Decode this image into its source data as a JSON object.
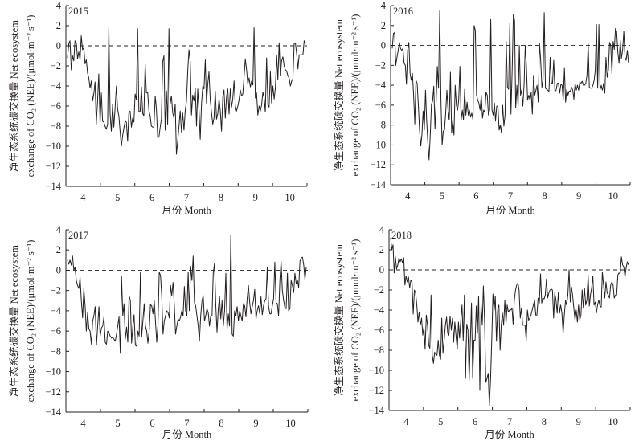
{
  "figure": {
    "note": "Four panels of daily NEE, April to October, 2015–2018"
  },
  "chart_data": [
    {
      "type": "line",
      "panel_label": "2015",
      "title": "",
      "xlabel": "月份 Month",
      "ylabel_line1": "净生态系统碳交换量 Net ecosystem",
      "ylabel_line2": "exchange of CO₂ (NEE)/(μmol·m⁻² s⁻¹)",
      "x_tick_labels": [
        "4",
        "5",
        "6",
        "7",
        "8",
        "9",
        "10"
      ],
      "y_ticks": [
        4,
        2,
        0,
        -2,
        -4,
        -6,
        -8,
        -10,
        -12,
        -14
      ],
      "ylim": [
        -14,
        4
      ],
      "xlim_months": [
        4,
        10
      ],
      "reference_line": {
        "y": 0,
        "style": "dashed"
      },
      "series": [
        {
          "name": "NEE 2015",
          "values": [
            -1.2,
            0.2,
            0.5,
            -2.4,
            -1.0,
            -1.5,
            0.5,
            0.3,
            -1.3,
            -0.6,
            -1.4,
            1.0,
            -0.4,
            -0.2,
            -1.8,
            -1.4,
            -2.7,
            -3.2,
            -4.2,
            -3.5,
            -5.5,
            -4.8,
            -3.6,
            -7.8,
            -5.5,
            -2.8,
            -7.8,
            -4.7,
            -7.5,
            -7.6,
            -8.0,
            -8.3,
            -7.8,
            1.9,
            -6.8,
            -8.5,
            -5.8,
            -8.1,
            -6.2,
            -4.0,
            -6.3,
            -7.0,
            -8.5,
            -10.0,
            -9.0,
            -8.2,
            -7.5,
            -7.6,
            -9.5,
            -6.7,
            -6.5,
            -8.1,
            -7.2,
            -7.6,
            -4.8,
            -5.4,
            1.7,
            -6.6,
            -6.5,
            -4.1,
            -6.7,
            -7.0,
            -1.8,
            -4.7,
            -4.6,
            -6.5,
            -7.0,
            -8.0,
            -8.1,
            -8.1,
            -5.0,
            -6.3,
            -9.1,
            -9.1,
            -8.1,
            -7.3,
            -1.6,
            -1.0,
            -8.4,
            -4.5,
            -7.8,
            1.7,
            -5.8,
            -5.0,
            -6.7,
            -7.2,
            -5.8,
            -10.8,
            -9.5,
            -8.0,
            -6.5,
            -8.6,
            -6.7,
            -8.4,
            -6.5,
            -5.5,
            -2.5,
            -0.4,
            -1.6,
            -6.9,
            -4.9,
            -5.5,
            -4.2,
            -8.0,
            -4.3,
            -6.4,
            -9.3,
            -5.8,
            -4.0,
            -4.3,
            -1.4,
            -5.7,
            -3.8,
            -2.6,
            -5.4,
            -6.7,
            -7.8,
            -7.2,
            -4.5,
            -7.3,
            -6.8,
            -5.3,
            -6.5,
            -8.5,
            -5.1,
            -4.4,
            -7.2,
            -5.0,
            -4.3,
            -6.8,
            -4.3,
            -6.1,
            -5.3,
            -3.5,
            -6.0,
            -6.5,
            -6.0,
            -5.4,
            -4.4,
            -5.0,
            -4.8,
            -3.0,
            -1.3,
            -2.4,
            -3.8,
            -3.2,
            -4.1,
            -3.5,
            -3.9,
            1.8,
            -5.2,
            -4.7,
            -6.9,
            -6.0,
            -6.5,
            -5.9,
            -4.6,
            -5.2,
            -6.6,
            -1.2,
            -5.9,
            -6.1,
            -2.6,
            -5.7,
            -4.0,
            -5.3,
            -4.2,
            -1.0,
            -3.4,
            0.3,
            -3.0,
            -1.5,
            -1.1,
            -2.0,
            -2.4,
            -2.5,
            -3.0,
            -3.2,
            -4.0,
            -3.5,
            -3.3,
            0.2,
            0.3,
            -0.8,
            -2.3,
            -0.9,
            -0.9,
            -0.9,
            -0.9,
            0.5,
            0.2
          ]
        }
      ]
    },
    {
      "type": "line",
      "panel_label": "2016",
      "title": "",
      "xlabel": "月份 Month",
      "ylabel_line1": "净生态系统碳交换量 Net ecosystem",
      "ylabel_line2": "exchange of CO₂ (NEE)/(μmol·m⁻² s⁻¹)",
      "x_tick_labels": [
        "4",
        "5",
        "6",
        "7",
        "8",
        "9",
        "10"
      ],
      "y_ticks": [
        4,
        2,
        0,
        -2,
        -4,
        -6,
        -8,
        -10,
        -12,
        -14
      ],
      "ylim": [
        -14,
        4
      ],
      "xlim_months": [
        4,
        10
      ],
      "reference_line": {
        "y": 0,
        "style": "dashed"
      },
      "series": [
        {
          "name": "NEE 2016",
          "values": [
            -0.3,
            1.2,
            1.3,
            -2.0,
            -1.2,
            -0.5,
            0.3,
            -0.3,
            -0.5,
            -0.3,
            -1.8,
            -2.0,
            -3.9,
            -0.5,
            0.3,
            -2.8,
            -3.5,
            -2.8,
            -5.0,
            -7.9,
            -3.5,
            -3.8,
            -6.0,
            -8.5,
            -10.1,
            -9.0,
            -6.6,
            -8.5,
            -4.5,
            -7.5,
            -9.7,
            -11.5,
            -9.0,
            -5.9,
            -5.6,
            -4.1,
            -8.4,
            -5.5,
            -2.1,
            -4.3,
            3.5,
            -5.5,
            -10.0,
            -8.6,
            -8.5,
            -6.8,
            -4.5,
            -6.5,
            -7.5,
            -2.7,
            -8.8,
            -7.6,
            -9.0,
            -4.0,
            -6.0,
            -6.5,
            -5.5,
            -2.1,
            -7.5,
            -6.5,
            -7.5,
            -4.4,
            -7.0,
            -5.7,
            -7.0,
            -6.5,
            -7.2,
            -6.8,
            -7.5,
            2.0,
            1.5,
            -5.0,
            -5.5,
            -5.8,
            -6.5,
            -5.0,
            -7.3,
            -6.5,
            -6.7,
            -4.7,
            -5.0,
            -7.0,
            -6.5,
            2.6,
            -6.5,
            -7.0,
            -5.8,
            -7.6,
            -6.1,
            -6.1,
            -8.5,
            -8.0,
            -8.8,
            -6.0,
            -8.1,
            -7.0,
            0.4,
            -4.2,
            -4.4,
            2.2,
            -6.9,
            -2.5,
            3.1,
            2.5,
            -6.3,
            -4.0,
            -6.1,
            0.0,
            -5.0,
            -4.5,
            -6.1,
            -4.0,
            0.0,
            -2.0,
            -5.5,
            -5.0,
            -5.5,
            -4.7,
            -6.9,
            -3.0,
            -5.0,
            -4.5,
            -4.0,
            -5.7,
            0.2,
            -1.5,
            -4.2,
            -3.5,
            3.3,
            -4.3,
            -4.4,
            -4.5,
            -4.6,
            -1.2,
            -3.8,
            -3.8,
            -1.5,
            -4.6,
            -4.5,
            -3.8,
            -3.8,
            -4.8,
            -3.9,
            -4.0,
            -5.5,
            -2.3,
            -5.7,
            -4.4,
            -5.0,
            -4.6,
            -4.6,
            -4.2,
            -4.5,
            -5.4,
            -3.8,
            -4.5,
            -4.0,
            -4.5,
            -3.7,
            -3.8,
            -3.6,
            -4.0,
            -4.0,
            -3.8,
            -3.0,
            0.2,
            -4.2,
            -4.3,
            -4.3,
            -4.0,
            -3.5,
            -2.5,
            2.1,
            -4.3,
            2.1,
            -4.5,
            -4.0,
            -4.5,
            -3.8,
            -4.8,
            -1.2,
            -3.2,
            -2.5,
            0.3,
            0.0,
            -2.8,
            0.4,
            -0.4,
            1.7,
            1.4,
            -0.7,
            -1.8,
            0.5,
            -1.3,
            -0.5,
            1.4,
            -1.2,
            -1.5,
            -0.5,
            -1.8
          ]
        }
      ]
    },
    {
      "type": "line",
      "panel_label": "2017",
      "title": "",
      "xlabel": "月份 Month",
      "ylabel_line1": "净生态系统碳交换量 Net ecosystem",
      "ylabel_line2": "exchange of CO₂ (NEE)/(μmol·m⁻² s⁻¹)",
      "x_tick_labels": [
        "4",
        "5",
        "6",
        "7",
        "8",
        "9",
        "10"
      ],
      "y_ticks": [
        4,
        2,
        0,
        -2,
        -4,
        -6,
        -8,
        -10,
        -12,
        -14
      ],
      "ylim": [
        -14,
        4
      ],
      "xlim_months": [
        4,
        10
      ],
      "reference_line": {
        "y": 0,
        "style": "dashed"
      },
      "series": [
        {
          "name": "NEE 2017",
          "values": [
            1.0,
            0.6,
            1.0,
            0.5,
            1.4,
            0.0,
            0.3,
            -1.0,
            -1.5,
            -1.8,
            -0.7,
            -3.0,
            -4.7,
            -1.8,
            -3.5,
            -6.0,
            -4.2,
            -5.8,
            -6.0,
            -7.3,
            -5.0,
            -4.5,
            -3.6,
            -7.4,
            -5.5,
            -3.6,
            -6.5,
            -5.7,
            -5.5,
            -4.6,
            -7.1,
            -7.3,
            -6.0,
            -6.2,
            -6.5,
            -6.7,
            -6.6,
            -6.8,
            -7.0,
            -6.3,
            -5.5,
            -4.6,
            -8.2,
            -0.6,
            -4.5,
            -3.3,
            -6.8,
            -5.6,
            -7.1,
            -2.5,
            -3.0,
            -7.2,
            -5.5,
            -4.4,
            -7.4,
            -7.5,
            -6.0,
            -6.5,
            -0.2,
            -6.6,
            -5.0,
            -3.3,
            -5.5,
            -6.0,
            -7.2,
            -6.0,
            -3.4,
            -3.5,
            -4.3,
            -3.0,
            -5.0,
            -7.1,
            -5.5,
            -0.2,
            -0.5,
            -2.5,
            -6.3,
            -5.0,
            -4.5,
            -4.0,
            -4.2,
            -4.7,
            -1.5,
            -2.5,
            -1.2,
            -3.5,
            -6.3,
            -5.5,
            -4.8,
            -5.0,
            -4.6,
            -4.0,
            -4.5,
            -1.6,
            -4.0,
            -4.5,
            -0.2,
            -4.0,
            0.4,
            -1.0,
            1.4,
            -3.2,
            -3.5,
            -4.5,
            -5.5,
            -7.0,
            -4.5,
            -3.0,
            -2.5,
            -5.0,
            -4.5,
            -3.8,
            -4.2,
            -5.5,
            -4.5,
            -4.5,
            -0.3,
            0.7,
            -3.5,
            -6.1,
            -3.8,
            -2.6,
            -4.8,
            -3.0,
            -5.5,
            -4.0,
            -0.3,
            -5.8,
            -4.3,
            -5.5,
            3.5,
            -6.3,
            -6.5,
            -4.0,
            -4.5,
            -3.6,
            -5.0,
            -4.0,
            -4.5,
            -5.0,
            -3.3,
            -3.5,
            -4.6,
            -2.8,
            -1.5,
            -3.2,
            -4.3,
            -3.6,
            -3.0,
            -1.9,
            -4.8,
            -4.0,
            -3.5,
            -4.3,
            -2.6,
            -4.4,
            -3.5,
            -3.0,
            -2.8,
            0.3,
            -3.5,
            -4.3,
            -4.3,
            -3.5,
            -2.8,
            0.8,
            -3.2,
            -3.3,
            -4.5,
            -1.0,
            0.9,
            -2.0,
            -3.0,
            -3.7,
            -3.8,
            -0.3,
            -4.0,
            -3.8,
            -1.0,
            -1.5,
            -2.2,
            -0.3,
            -1.3,
            -1.0,
            -1.7,
            0.9,
            1.2,
            1.3,
            0.5,
            -0.9,
            0.3
          ]
        }
      ]
    },
    {
      "type": "line",
      "panel_label": "2018",
      "title": "",
      "xlabel": "月份 Month",
      "ylabel_line1": "净生态系统碳交换量 Net ecosystem",
      "ylabel_line2": "exchange of CO₂ (NEE)/(μmol·m⁻² s⁻¹)",
      "x_tick_labels": [
        "4",
        "5",
        "6",
        "7",
        "8",
        "9",
        "10"
      ],
      "y_ticks": [
        4,
        2,
        0,
        -2,
        -4,
        -6,
        -8,
        -10,
        -12,
        -14
      ],
      "ylim": [
        -14,
        4
      ],
      "xlim_months": [
        4,
        10
      ],
      "reference_line": {
        "y": 0,
        "style": "dashed"
      },
      "series": [
        {
          "name": "NEE 2018",
          "values": [
            3.2,
            2.0,
            2.5,
            -0.3,
            1.3,
            0.1,
            0.5,
            1.2,
            0.8,
            1.1,
            0.7,
            1.2,
            -1.5,
            -0.6,
            -1.2,
            -0.7,
            -1.8,
            -1.0,
            -1.2,
            -4.4,
            -2.0,
            -2.3,
            -3.5,
            -5.2,
            -4.2,
            -5.5,
            -4.8,
            -6.5,
            -5.7,
            -7.9,
            -4.5,
            -5.5,
            -7.5,
            -7.8,
            -2.5,
            -8.5,
            -9.3,
            -8.2,
            -8.4,
            -8.5,
            -7.0,
            -8.5,
            -8.9,
            -4.8,
            -8.3,
            -7.0,
            -5.5,
            -4.7,
            -6.3,
            -6.5,
            -4.6,
            -6.0,
            -4.8,
            -7.2,
            -5.2,
            -6.6,
            -7.9,
            -5.2,
            -6.8,
            -5.0,
            -3.5,
            -7.0,
            -2.5,
            -10.8,
            -5.4,
            -6.0,
            -11.0,
            -7.0,
            -3.3,
            -10.8,
            -7.0,
            -7.0,
            -3.6,
            -6.3,
            -2.6,
            -12.0,
            -3.4,
            -5.5,
            -1.6,
            -5.0,
            -11.2,
            -10.8,
            -10.3,
            -13.5,
            -11.0,
            -7.0,
            -2.4,
            -4.0,
            -2.6,
            -7.1,
            -4.0,
            -3.5,
            -8.0,
            -5.5,
            -4.3,
            -5.5,
            -3.0,
            -5.3,
            -3.5,
            -4.2,
            -4.0,
            -4.0,
            -3.8,
            -5.4,
            -3.0,
            -2.0,
            -1.5,
            -1.3,
            -2.0,
            -4.8,
            -3.8,
            -5.5,
            -5.5,
            -5.5,
            -7.0,
            -4.0,
            -5.0,
            -4.8,
            -4.5,
            -4.0,
            -3.5,
            -3.0,
            -4.5,
            -4.5,
            -2.8,
            -3.3,
            -0.4,
            -3.3,
            -2.8,
            -2.9,
            -2.5,
            -0.9,
            -2.8,
            -2.3,
            -2.0,
            -1.9,
            -2.0,
            -4.8,
            -2.3,
            -3.0,
            -4.3,
            -2.2,
            -4.3,
            -3.5,
            -4.3,
            -6.3,
            -4.5,
            -3.0,
            -3.5,
            -2.5,
            0.0,
            -3.2,
            -1.7,
            -2.5,
            -3.8,
            -5.0,
            -4.0,
            -5.2,
            -3.5,
            -5.0,
            -4.5,
            -2.0,
            -3.8,
            -1.8,
            -3.5,
            -3.0,
            -0.5,
            -3.6,
            -2.5,
            -1.8,
            -0.6,
            -3.5,
            -3.2,
            -4.3,
            -3.5,
            -3.0,
            -3.6,
            -3.7,
            -0.2,
            -1.5,
            -2.8,
            -1.2,
            -2.3,
            -2.5,
            -2.8,
            -1.5,
            -1.2,
            -1.5,
            -2.8,
            -2.5,
            -2.5,
            -0.5,
            -0.3,
            -0.4,
            1.3,
            0.5,
            0.3,
            -0.7,
            0.2,
            0.8,
            0.5
          ]
        }
      ]
    }
  ]
}
